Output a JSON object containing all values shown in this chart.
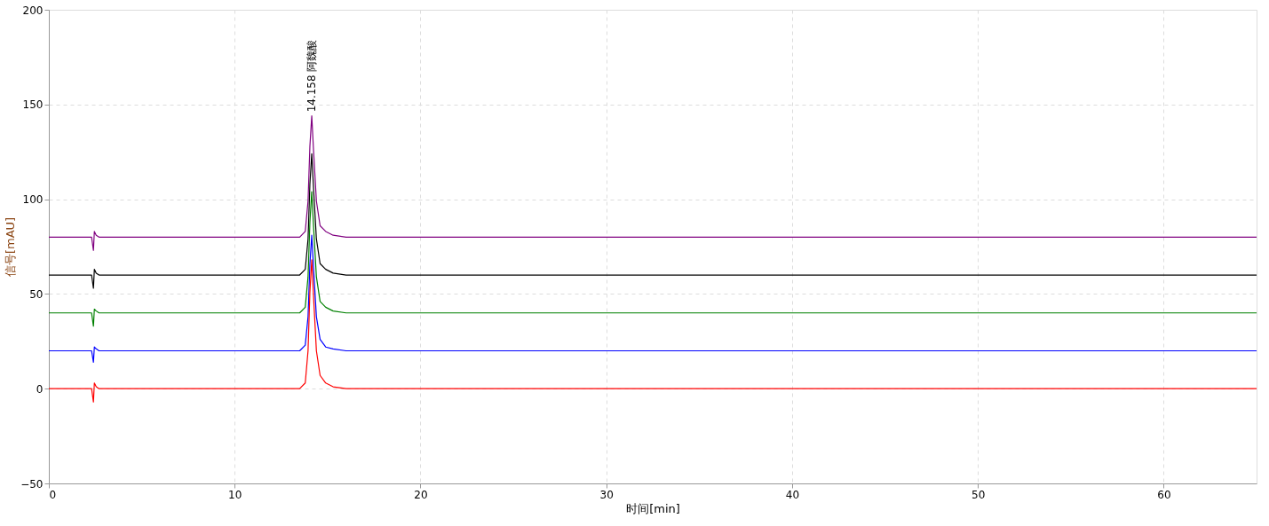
{
  "chart_data": {
    "type": "line",
    "xlabel": "时间[min]",
    "ylabel": "信号[mAU]",
    "x": [
      0,
      2.3,
      2.4,
      2.45,
      2.55,
      2.7,
      13.5,
      13.8,
      13.95,
      14.05,
      14.15,
      14.25,
      14.4,
      14.6,
      14.9,
      15.3,
      16,
      65
    ],
    "series": [
      {
        "color": "#800080",
        "values": [
          80,
          80,
          73,
          83,
          81,
          80,
          80,
          83,
          99,
          128,
          144,
          125,
          99,
          86,
          83,
          81,
          80,
          80
        ]
      },
      {
        "color": "#000000",
        "values": [
          60,
          60,
          53,
          63,
          61,
          60,
          60,
          63,
          79,
          108,
          124,
          105,
          79,
          66,
          63,
          61,
          60,
          60
        ]
      },
      {
        "color": "#008000",
        "values": [
          40,
          40,
          33,
          42,
          41,
          40,
          40,
          43,
          59,
          88,
          104,
          85,
          59,
          46,
          43,
          41,
          40,
          40
        ]
      },
      {
        "color": "#0000ff",
        "values": [
          20,
          20,
          14,
          22,
          21,
          20,
          20,
          23,
          38,
          66,
          81,
          63,
          38,
          26,
          22,
          21,
          20,
          20
        ]
      },
      {
        "color": "#ff0000",
        "values": [
          0,
          0,
          -7,
          3,
          1,
          0,
          0,
          3,
          20,
          51,
          68,
          48,
          20,
          7,
          3,
          1,
          0,
          0
        ]
      }
    ],
    "annotations": [
      {
        "text": "14.158 阿魏酸",
        "x": 14.158,
        "y": 146
      }
    ],
    "xlim": [
      0,
      65
    ],
    "xticks": [
      0,
      10,
      20,
      30,
      40,
      50,
      60
    ],
    "ylim": [
      -50,
      200
    ],
    "yticks": [
      -50,
      0,
      50,
      100,
      150,
      200
    ],
    "grid": true,
    "legend": false,
    "marker": "none",
    "line_style": "solid"
  }
}
